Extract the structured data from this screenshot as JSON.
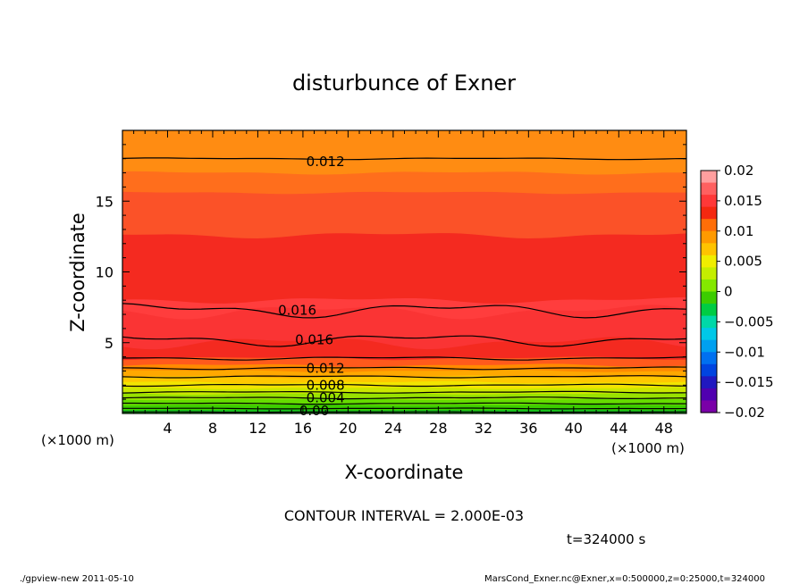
{
  "chart_data": {
    "type": "contour",
    "title": "disturbunce of Exner",
    "xlabel": "X-coordinate",
    "ylabel": "Z-coordinate",
    "x_unit": "(×1000 m)",
    "z_unit": "(×1000 m)",
    "xlim": [
      0,
      50
    ],
    "ylim": [
      0,
      20
    ],
    "x_ticks": [
      "4",
      "8",
      "12",
      "16",
      "20",
      "24",
      "28",
      "32",
      "36",
      "40",
      "44",
      "48"
    ],
    "y_ticks": [
      "5",
      "10",
      "15"
    ],
    "contour_interval_text": "CONTOUR INTERVAL = 2.000E-03",
    "time_text": "t=324000 s",
    "contour_labels": [
      {
        "text": "0.012",
        "x": 18,
        "z": 17.8
      },
      {
        "text": "0.016",
        "x": 15.5,
        "z": 7.3
      },
      {
        "text": "0.016",
        "x": 17,
        "z": 5.2
      },
      {
        "text": "0.012",
        "x": 18,
        "z": 3.2
      },
      {
        "text": "0.008",
        "x": 18,
        "z": 2.0
      },
      {
        "text": "0.004",
        "x": 18,
        "z": 1.1
      },
      {
        "text": "0.00",
        "x": 17,
        "z": 0.2
      }
    ],
    "colorbar": {
      "labels": [
        "0.02",
        "0.015",
        "0.01",
        "0.005",
        "0",
        "−0.005",
        "−0.01",
        "−0.015",
        "−0.02"
      ],
      "colors": [
        "#ff9f9f",
        "#ff6060",
        "#ff3838",
        "#f42810",
        "#ff6e08",
        "#ff9a00",
        "#ffc300",
        "#f0ee00",
        "#c4ee00",
        "#84e800",
        "#3ccc00",
        "#00cc44",
        "#00d8a8",
        "#00c8e8",
        "#00a0f0",
        "#0070f0",
        "#0044e0",
        "#2018c0",
        "#5000b0",
        "#7a00a8"
      ]
    }
  },
  "footer": {
    "left": "./gpview-new   2011-05-10",
    "right": "MarsCond_Exner.nc@Exner,x=0:500000,z=0:25000,t=324000"
  }
}
